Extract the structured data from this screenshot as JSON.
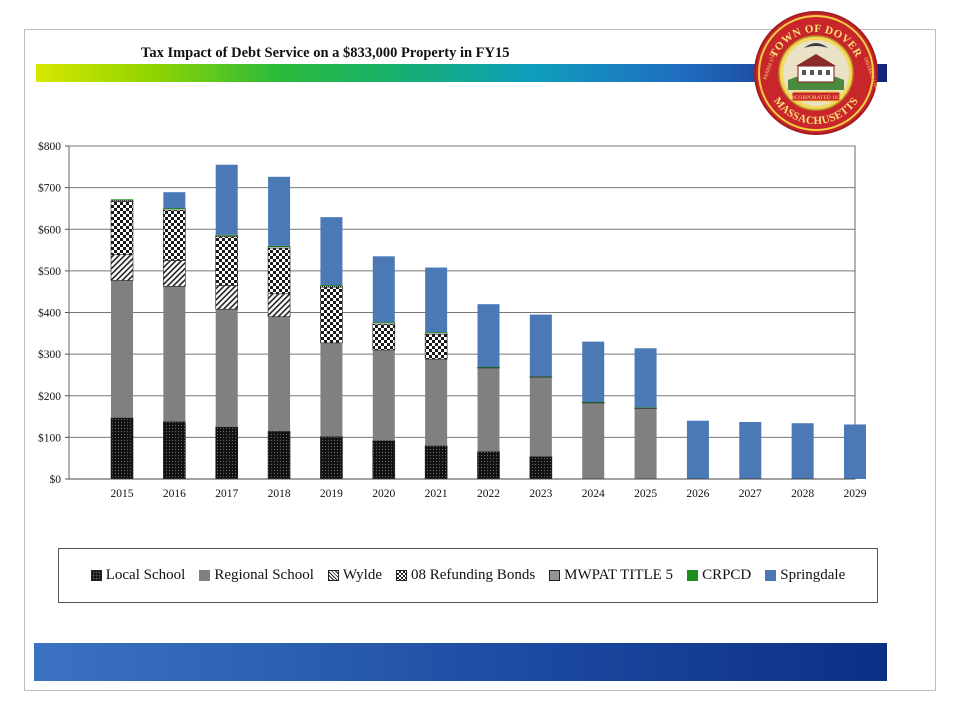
{
  "slide": {
    "title": "Tax Impact of Debt Service on a  $833,000 Property in FY15"
  },
  "seal": {
    "top_text": "TOWN OF DOVER",
    "bottom_text": "MASSACHUSETTS",
    "left_text": "PARISH 1748",
    "right_text": "DISTRICT 1784",
    "banner_text": "INCORPORATED 1836"
  },
  "colors": {
    "regional": "#808080",
    "crpcd": "#1e8f1e",
    "springdale": "#4a79b5"
  },
  "chart_data": {
    "type": "bar",
    "stacked": true,
    "title": "Tax Impact of Debt Service on a  $833,000 Property in FY15",
    "xlabel": "",
    "ylabel": "",
    "ylim": [
      0,
      800
    ],
    "yticks": [
      0,
      100,
      200,
      300,
      400,
      500,
      600,
      700,
      800
    ],
    "ytick_labels": [
      "$0",
      "$100",
      "$200",
      "$300",
      "$400",
      "$500",
      "$600",
      "$700",
      "$800"
    ],
    "grid": true,
    "legend_position": "bottom",
    "categories": [
      "2015",
      "2016",
      "2017",
      "2018",
      "2019",
      "2020",
      "2021",
      "2022",
      "2023",
      "2024",
      "2025",
      "2026",
      "2027",
      "2028",
      "2029"
    ],
    "series": [
      {
        "name": "Local School",
        "pattern": "dotted-black",
        "values": [
          147,
          138,
          125,
          115,
          102,
          92,
          80,
          66,
          54,
          0,
          0,
          0,
          0,
          0,
          0
        ]
      },
      {
        "name": "Regional School",
        "pattern": "solid-gray",
        "values": [
          330,
          325,
          283,
          275,
          225,
          218,
          208,
          201,
          191,
          183,
          170,
          0,
          0,
          0,
          0
        ]
      },
      {
        "name": "Wylde",
        "pattern": "diagonal",
        "values": [
          62,
          62,
          57,
          55,
          0,
          0,
          0,
          0,
          0,
          0,
          0,
          0,
          0,
          0,
          0
        ]
      },
      {
        "name": "08 Refunding Bonds",
        "pattern": "checker",
        "values": [
          128,
          121,
          117,
          110,
          134,
          62,
          60,
          0,
          0,
          0,
          0,
          0,
          0,
          0,
          0
        ]
      },
      {
        "name": "MWPAT TITLE 5",
        "pattern": "fine-dots",
        "values": [
          3,
          3,
          3,
          3,
          3,
          3,
          3,
          1,
          1,
          1,
          1,
          0,
          0,
          0,
          0
        ]
      },
      {
        "name": "CRPCD",
        "pattern": "solid-green",
        "values": [
          2,
          2,
          2,
          2,
          2,
          2,
          2,
          1,
          1,
          1,
          1,
          0,
          0,
          0,
          0
        ]
      },
      {
        "name": "Springdale",
        "pattern": "solid-blue",
        "values": [
          0,
          38,
          168,
          166,
          163,
          158,
          155,
          151,
          148,
          145,
          142,
          140,
          137,
          134,
          131
        ]
      }
    ]
  }
}
